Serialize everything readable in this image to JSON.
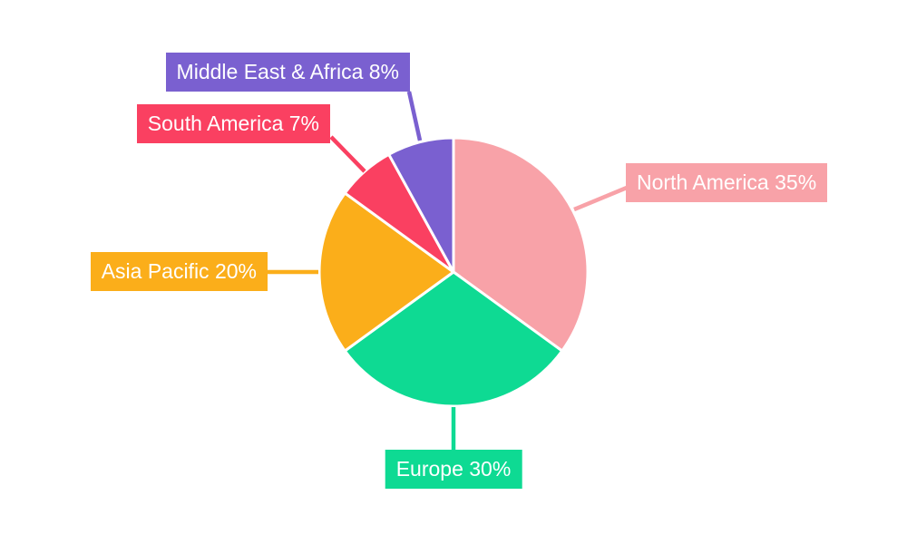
{
  "chart_data": {
    "type": "pie",
    "title": "",
    "background": "#FFFFFF",
    "label_text_color": "#FFFFFF",
    "direction": "clockwise",
    "start_angle_deg": 0,
    "slices": [
      {
        "label": "North America",
        "value": 35,
        "display": "North America 35%",
        "color": "#F8A2A8"
      },
      {
        "label": "Europe",
        "value": 30,
        "display": "Europe 30%",
        "color": "#0EDA93"
      },
      {
        "label": "Asia Pacific",
        "value": 20,
        "display": "Asia Pacific 20%",
        "color": "#FBAE1A"
      },
      {
        "label": "South America",
        "value": 7,
        "display": "South America 7%",
        "color": "#FA4061"
      },
      {
        "label": "Middle East & Africa",
        "value": 8,
        "display": "Middle East & Africa 8%",
        "color": "#7A60D0"
      }
    ]
  }
}
